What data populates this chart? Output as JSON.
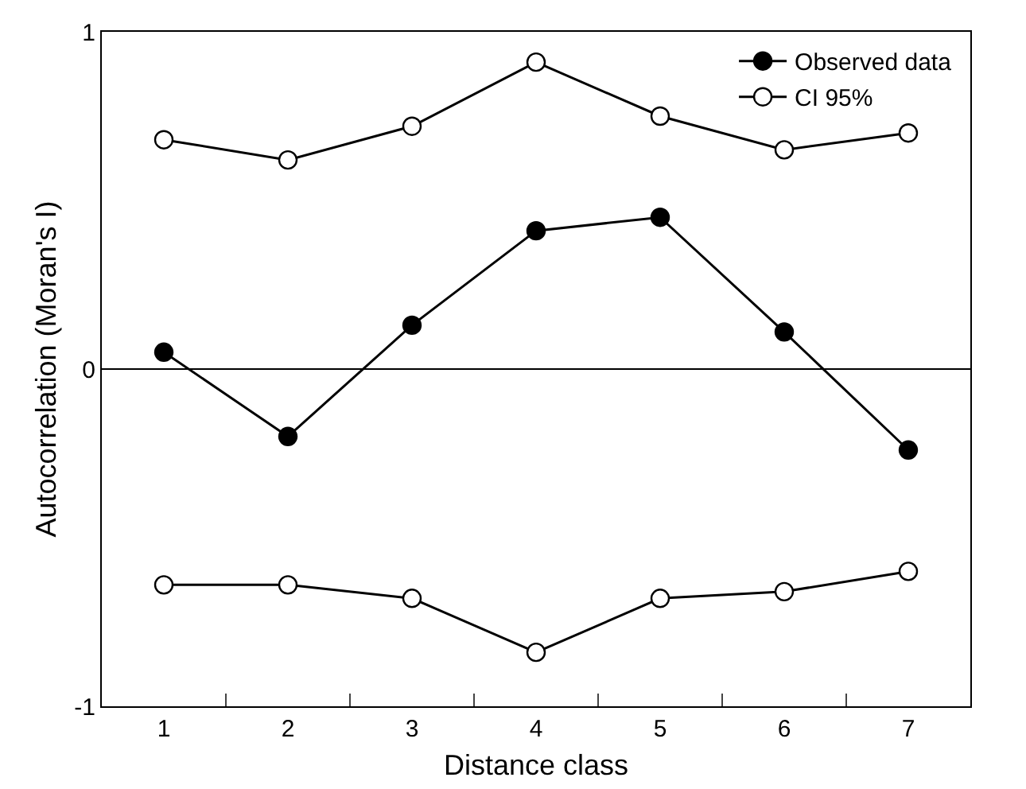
{
  "chart_data": {
    "type": "line",
    "xlabel": "Distance class",
    "ylabel": "Autocorrelation (Moran's I)",
    "categories": [
      "1",
      "2",
      "3",
      "4",
      "5",
      "6",
      "7"
    ],
    "ylim": [
      -1,
      1
    ],
    "yticks": [
      -1,
      0,
      1
    ],
    "grid": false,
    "legend": "top right",
    "line_style": "solid",
    "ref_lines": [
      {
        "axis": "y",
        "value": 0,
        "color": "#000000"
      }
    ],
    "series": [
      {
        "name": "Observed data",
        "color": "#000000",
        "marker": "circle",
        "values": [
          0.05,
          -0.2,
          0.13,
          0.41,
          0.45,
          0.11,
          -0.24
        ]
      },
      {
        "name": "CI 95%",
        "color": "#000000",
        "marker": "circle-open",
        "values": [
          0.68,
          0.62,
          0.72,
          0.91,
          0.75,
          0.65,
          0.7
        ]
      },
      {
        "color": "#000000",
        "marker": "circle-open",
        "values": [
          -0.64,
          -0.64,
          -0.68,
          -0.84,
          -0.68,
          -0.66,
          -0.6
        ]
      }
    ]
  }
}
